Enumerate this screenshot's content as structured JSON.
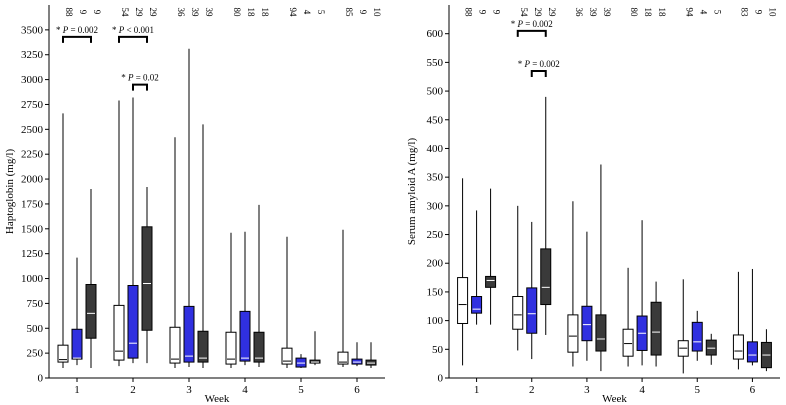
{
  "colors": {
    "group1": "#ffffff",
    "group2": "#3030e0",
    "group3": "#3a3a3a",
    "stroke": "#000000",
    "median_dark": "#ffffff",
    "median_light": "#000000"
  },
  "chart_data": [
    {
      "type": "boxplot",
      "ylabel": "Haptoglobin (mg/l)",
      "xlabel": "Week",
      "ylim": [
        0,
        3750
      ],
      "yticks": [
        0,
        250,
        500,
        750,
        1000,
        1250,
        1500,
        1750,
        2000,
        2250,
        2500,
        2750,
        3000,
        3250,
        3500
      ],
      "categories": [
        "1",
        "2",
        "3",
        "4",
        "5",
        "6"
      ],
      "sample_sizes": [
        [
          "88",
          "9",
          "9"
        ],
        [
          "54",
          "29",
          "29"
        ],
        [
          "36",
          "39",
          "39"
        ],
        [
          "80",
          "18",
          "18"
        ],
        [
          "94",
          "4",
          "5"
        ],
        [
          "85",
          "9",
          "10"
        ]
      ],
      "boxes": [
        [
          {
            "min": 100,
            "q1": 160,
            "median": 185,
            "q3": 330,
            "max": 2660
          },
          {
            "min": 130,
            "q1": 190,
            "median": 200,
            "q3": 490,
            "max": 1210
          },
          {
            "min": 100,
            "q1": 400,
            "median": 650,
            "q3": 940,
            "max": 1900
          }
        ],
        [
          {
            "min": 120,
            "q1": 180,
            "median": 270,
            "q3": 730,
            "max": 2790
          },
          {
            "min": 150,
            "q1": 200,
            "median": 350,
            "q3": 930,
            "max": 2820
          },
          {
            "min": 150,
            "q1": 480,
            "median": 950,
            "q3": 1520,
            "max": 1920
          }
        ],
        [
          {
            "min": 100,
            "q1": 150,
            "median": 190,
            "q3": 510,
            "max": 2420
          },
          {
            "min": 110,
            "q1": 160,
            "median": 220,
            "q3": 720,
            "max": 3310
          },
          {
            "min": 100,
            "q1": 160,
            "median": 200,
            "q3": 470,
            "max": 2550
          }
        ],
        [
          {
            "min": 100,
            "q1": 140,
            "median": 190,
            "q3": 460,
            "max": 1460
          },
          {
            "min": 130,
            "q1": 170,
            "median": 200,
            "q3": 670,
            "max": 1470
          },
          {
            "min": 110,
            "q1": 160,
            "median": 200,
            "q3": 460,
            "max": 1740
          }
        ],
        [
          {
            "min": 100,
            "q1": 140,
            "median": 170,
            "q3": 300,
            "max": 1420
          },
          {
            "min": 100,
            "q1": 110,
            "median": 150,
            "q3": 200,
            "max": 240
          },
          {
            "min": 130,
            "q1": 150,
            "median": 160,
            "q3": 180,
            "max": 470
          }
        ],
        [
          {
            "min": 110,
            "q1": 140,
            "median": 160,
            "q3": 260,
            "max": 1490
          },
          {
            "min": 120,
            "q1": 140,
            "median": 160,
            "q3": 190,
            "max": 360
          },
          {
            "min": 100,
            "q1": 130,
            "median": 150,
            "q3": 180,
            "max": 360
          }
        ]
      ],
      "annotations": [
        {
          "text": "* P = 0.002",
          "week": 1,
          "from_group": 1,
          "to_group": 3,
          "y": 3430
        },
        {
          "text": "* P < 0.001",
          "week": 2,
          "from_group": 1,
          "to_group": 3,
          "y": 3430
        },
        {
          "text": "* P = 0.02",
          "week": 2,
          "from_group": 2,
          "to_group": 3,
          "y": 2950
        }
      ]
    },
    {
      "type": "boxplot",
      "ylabel": "Serum amyloid A (mg/l)",
      "xlabel": "Week",
      "ylim": [
        0,
        650
      ],
      "yticks": [
        0,
        50,
        100,
        150,
        200,
        250,
        300,
        350,
        400,
        450,
        500,
        550,
        600
      ],
      "categories": [
        "1",
        "2",
        "3",
        "4",
        "5",
        "6"
      ],
      "sample_sizes": [
        [
          "88",
          "9",
          "9"
        ],
        [
          "54",
          "29",
          "29"
        ],
        [
          "36",
          "39",
          "39"
        ],
        [
          "80",
          "18",
          "18"
        ],
        [
          "94",
          "4",
          "5"
        ],
        [
          "83",
          "9",
          "10"
        ]
      ],
      "boxes": [
        [
          {
            "min": 22,
            "q1": 95,
            "median": 128,
            "q3": 175,
            "max": 348
          },
          {
            "min": 93,
            "q1": 113,
            "median": 120,
            "q3": 142,
            "max": 292
          },
          {
            "min": 93,
            "q1": 158,
            "median": 170,
            "q3": 177,
            "max": 330
          }
        ],
        [
          {
            "min": 48,
            "q1": 85,
            "median": 110,
            "q3": 142,
            "max": 300
          },
          {
            "min": 33,
            "q1": 78,
            "median": 112,
            "q3": 157,
            "max": 272
          },
          {
            "min": 75,
            "q1": 128,
            "median": 158,
            "q3": 225,
            "max": 490
          }
        ],
        [
          {
            "min": 20,
            "q1": 45,
            "median": 73,
            "q3": 110,
            "max": 308
          },
          {
            "min": 30,
            "q1": 65,
            "median": 93,
            "q3": 125,
            "max": 255
          },
          {
            "min": 12,
            "q1": 47,
            "median": 68,
            "q3": 110,
            "max": 372
          }
        ],
        [
          {
            "min": 20,
            "q1": 38,
            "median": 60,
            "q3": 85,
            "max": 192
          },
          {
            "min": 22,
            "q1": 48,
            "median": 78,
            "q3": 108,
            "max": 275
          },
          {
            "min": 20,
            "q1": 40,
            "median": 80,
            "q3": 132,
            "max": 168
          }
        ],
        [
          {
            "min": 8,
            "q1": 38,
            "median": 52,
            "q3": 65,
            "max": 172
          },
          {
            "min": 30,
            "q1": 47,
            "median": 63,
            "q3": 97,
            "max": 117
          },
          {
            "min": 23,
            "q1": 40,
            "median": 52,
            "q3": 66,
            "max": 77
          }
        ],
        [
          {
            "min": 15,
            "q1": 33,
            "median": 47,
            "q3": 75,
            "max": 185
          },
          {
            "min": 22,
            "q1": 28,
            "median": 40,
            "q3": 63,
            "max": 190
          },
          {
            "min": 12,
            "q1": 18,
            "median": 40,
            "q3": 62,
            "max": 85
          }
        ]
      ],
      "annotations": [
        {
          "text": "* P = 0.002",
          "week": 2,
          "from_group": 1,
          "to_group": 3,
          "y": 605
        },
        {
          "text": "* P = 0.002",
          "week": 2,
          "from_group": 2,
          "to_group": 3,
          "y": 535
        }
      ]
    }
  ]
}
